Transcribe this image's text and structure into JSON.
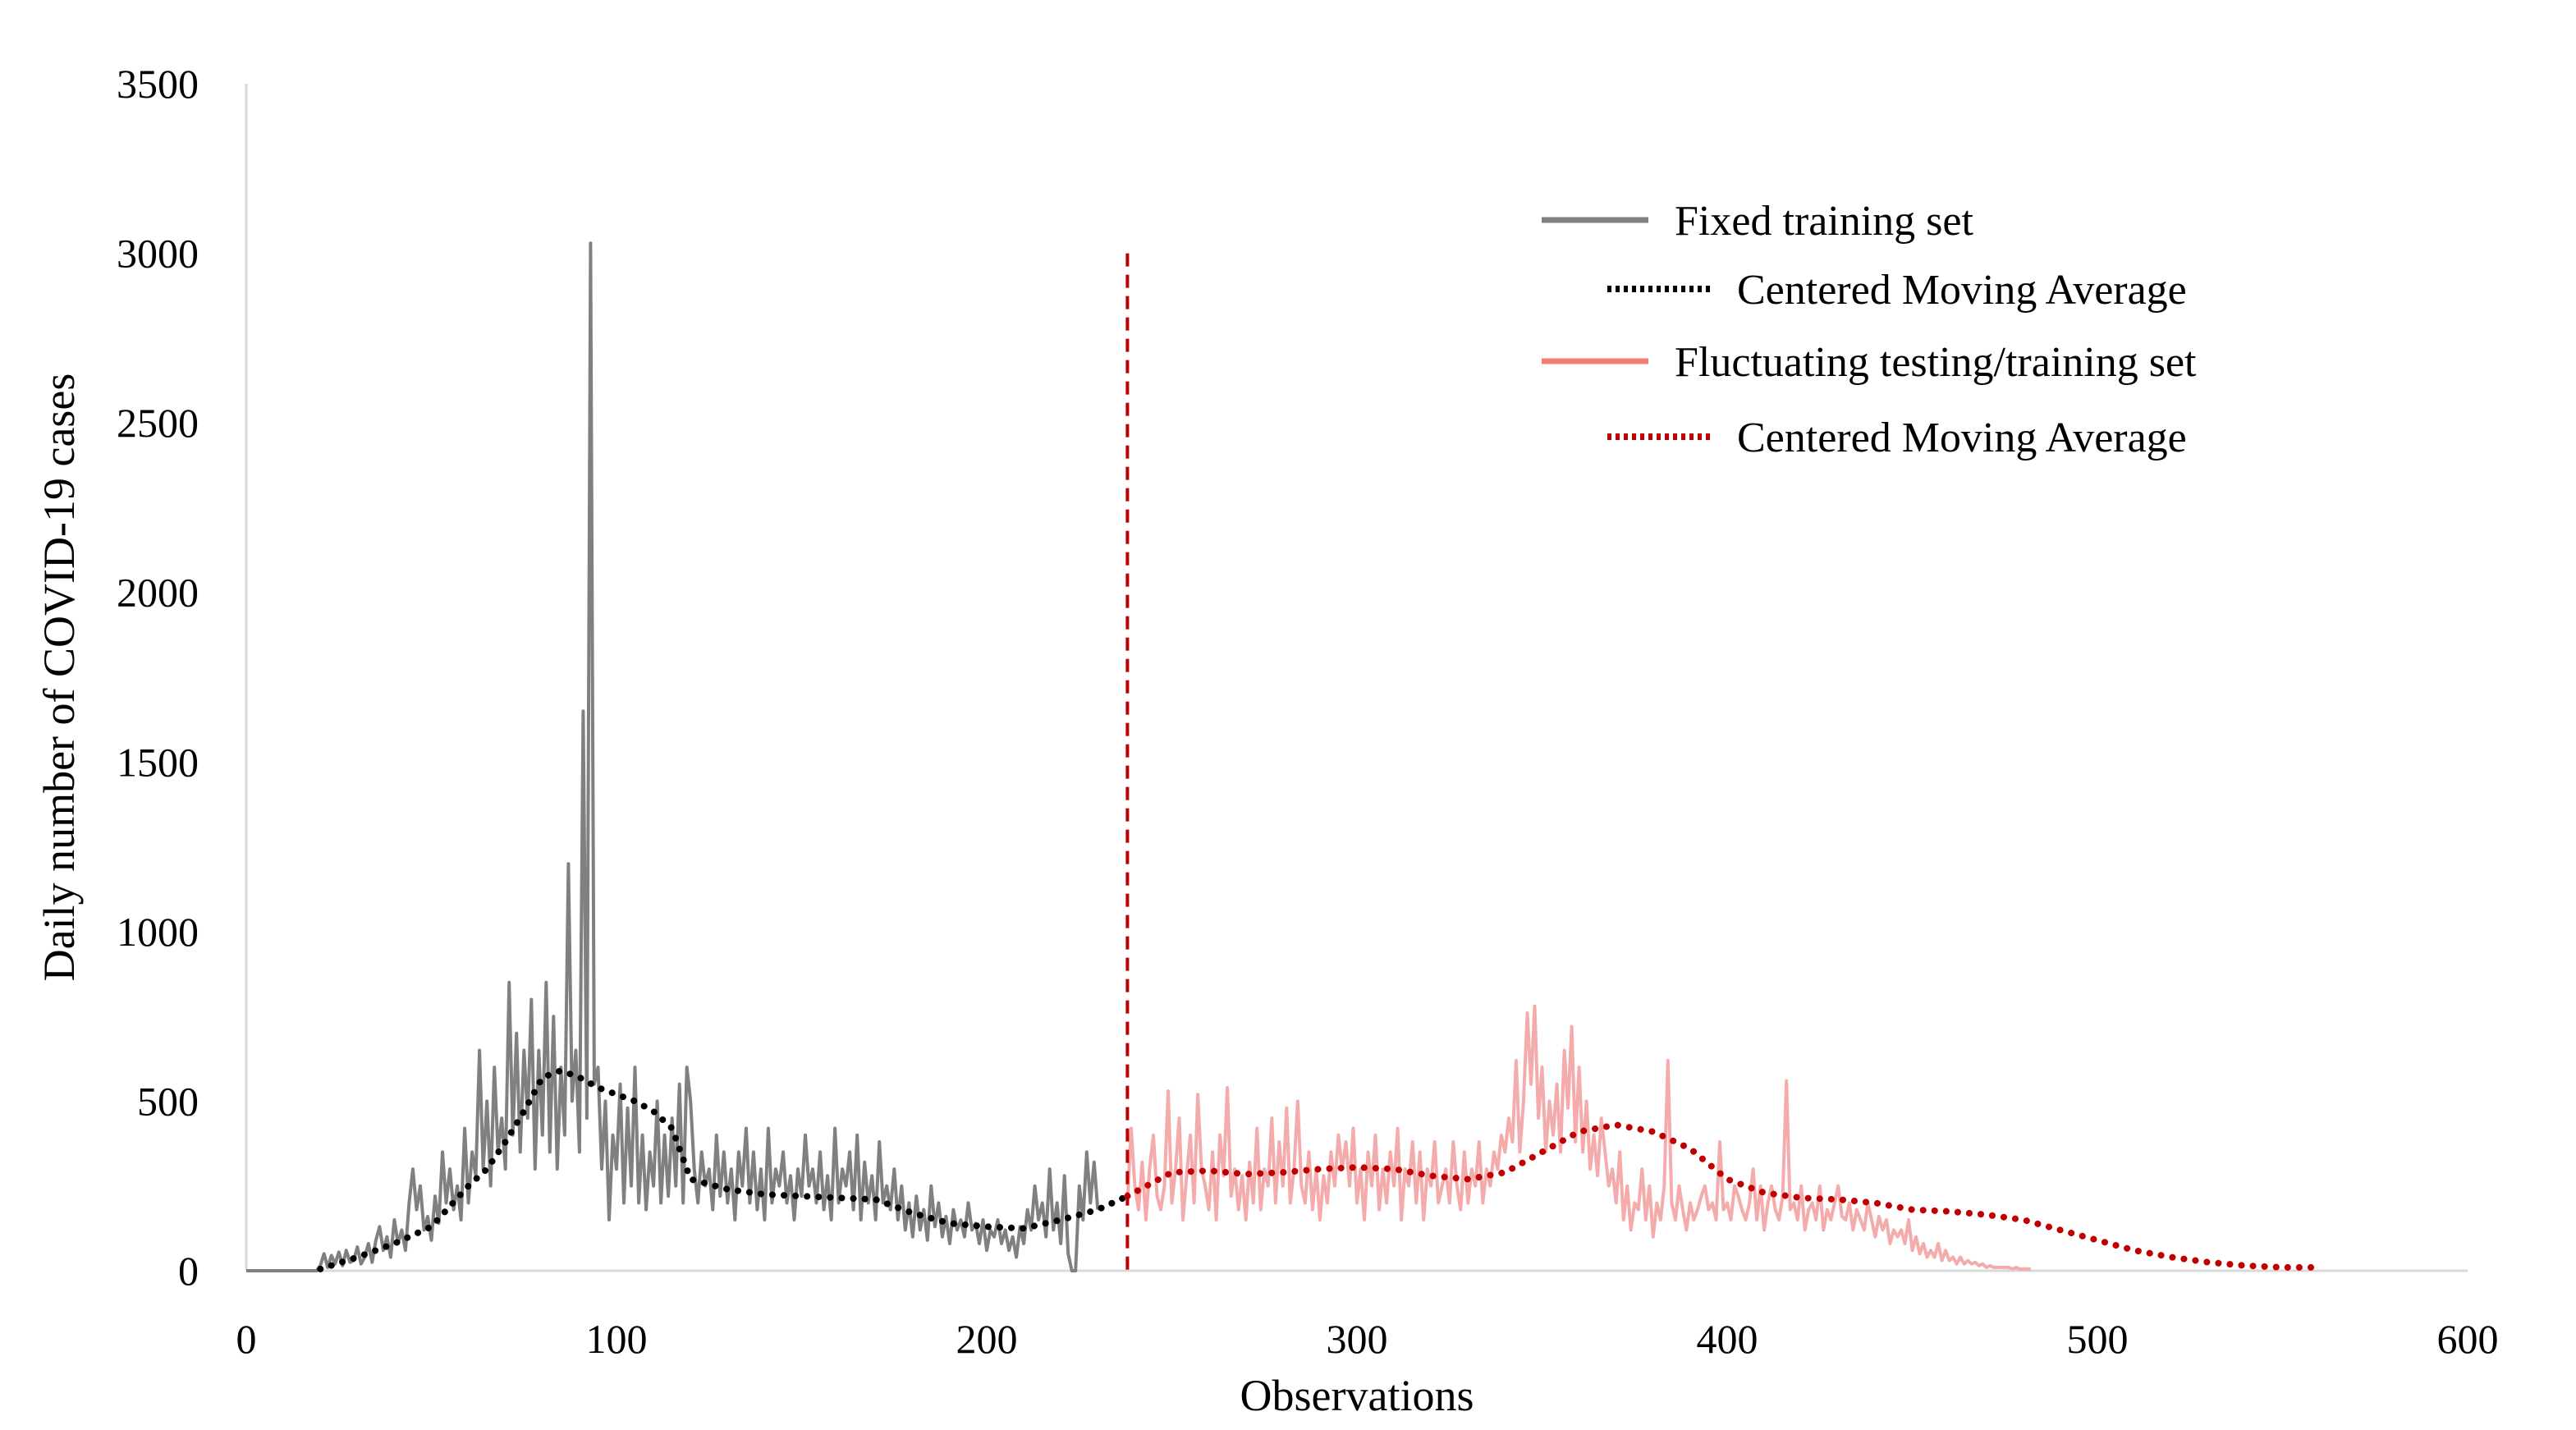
{
  "chart_data": {
    "type": "line",
    "title": "",
    "xlabel": "Observations",
    "ylabel": "Daily number of COVID-19 cases",
    "xlim": [
      0,
      600
    ],
    "ylim": [
      0,
      3500
    ],
    "xticks": [
      0,
      100,
      200,
      300,
      400,
      500,
      600
    ],
    "yticks": [
      0,
      500,
      1000,
      1500,
      2000,
      2500,
      3000,
      3500
    ],
    "grid": false,
    "legend_position": "top-right",
    "split": {
      "x": 238,
      "y_top": 3000,
      "color": "#C00000"
    },
    "series": [
      {
        "name": "Fixed training set",
        "color": "#808080",
        "style": "solid",
        "x_start": 0,
        "values": [
          0,
          0,
          0,
          0,
          0,
          0,
          0,
          0,
          0,
          0,
          0,
          0,
          0,
          0,
          0,
          0,
          0,
          0,
          0,
          0,
          15,
          50,
          10,
          45,
          20,
          55,
          15,
          60,
          25,
          30,
          70,
          20,
          40,
          80,
          25,
          90,
          130,
          60,
          100,
          40,
          150,
          80,
          120,
          60,
          200,
          300,
          180,
          250,
          120,
          160,
          90,
          220,
          140,
          350,
          200,
          300,
          180,
          250,
          150,
          420,
          200,
          350,
          280,
          650,
          300,
          500,
          250,
          600,
          350,
          450,
          300,
          850,
          400,
          700,
          350,
          650,
          450,
          800,
          300,
          650,
          400,
          850,
          350,
          750,
          300,
          600,
          400,
          1200,
          500,
          650,
          350,
          1650,
          450,
          3030,
          550,
          600,
          300,
          500,
          150,
          400,
          300,
          550,
          200,
          480,
          250,
          600,
          200,
          400,
          180,
          350,
          250,
          500,
          200,
          400,
          220,
          450,
          250,
          550,
          200,
          600,
          500,
          300,
          200,
          350,
          250,
          300,
          180,
          400,
          220,
          350,
          200,
          300,
          150,
          350,
          250,
          420,
          200,
          350,
          180,
          300,
          150,
          420,
          200,
          300,
          250,
          350,
          200,
          280,
          150,
          300,
          220,
          400,
          250,
          300,
          200,
          350,
          180,
          280,
          150,
          420,
          200,
          300,
          250,
          350,
          180,
          400,
          150,
          320,
          200,
          280,
          150,
          380,
          200,
          250,
          180,
          300,
          150,
          250,
          120,
          200,
          100,
          220,
          120,
          180,
          90,
          250,
          130,
          200,
          100,
          160,
          80,
          180,
          120,
          150,
          100,
          200,
          120,
          140,
          80,
          150,
          60,
          120,
          100,
          150,
          80,
          120,
          60,
          100,
          40,
          130,
          80,
          180,
          120,
          250,
          150,
          200,
          100,
          300,
          120,
          200,
          80,
          280,
          50,
          0,
          0,
          250,
          150,
          350,
          200,
          320,
          180
        ]
      },
      {
        "name": "Centered Moving Average",
        "color": "#000000",
        "style": "dotted",
        "points": [
          [
            20,
            5
          ],
          [
            30,
            40
          ],
          [
            40,
            80
          ],
          [
            50,
            130
          ],
          [
            55,
            190
          ],
          [
            60,
            250
          ],
          [
            65,
            300
          ],
          [
            70,
            380
          ],
          [
            75,
            470
          ],
          [
            80,
            570
          ],
          [
            85,
            590
          ],
          [
            90,
            570
          ],
          [
            95,
            540
          ],
          [
            100,
            520
          ],
          [
            105,
            500
          ],
          [
            110,
            470
          ],
          [
            115,
            420
          ],
          [
            120,
            270
          ],
          [
            130,
            240
          ],
          [
            140,
            225
          ],
          [
            150,
            220
          ],
          [
            160,
            215
          ],
          [
            170,
            210
          ],
          [
            180,
            170
          ],
          [
            190,
            140
          ],
          [
            200,
            130
          ],
          [
            210,
            125
          ],
          [
            220,
            150
          ],
          [
            230,
            180
          ],
          [
            238,
            220
          ]
        ]
      },
      {
        "name": "Fluctuating testing/training set",
        "color": "#F4ABAB",
        "style": "solid",
        "x_start": 238,
        "values": [
          200,
          420,
          250,
          180,
          320,
          150,
          300,
          400,
          220,
          180,
          250,
          530,
          200,
          300,
          450,
          150,
          280,
          400,
          200,
          520,
          300,
          250,
          180,
          350,
          150,
          400,
          280,
          540,
          220,
          300,
          180,
          280,
          150,
          320,
          200,
          420,
          180,
          300,
          250,
          450,
          200,
          380,
          250,
          480,
          200,
          300,
          500,
          250,
          200,
          350,
          180,
          300,
          150,
          280,
          200,
          350,
          250,
          400,
          300,
          380,
          250,
          420,
          200,
          300,
          150,
          350,
          250,
          400,
          180,
          300,
          200,
          350,
          250,
          420,
          150,
          300,
          250,
          380,
          200,
          350,
          150,
          300,
          250,
          380,
          200,
          250,
          300,
          200,
          380,
          250,
          180,
          350,
          200,
          300,
          250,
          380,
          200,
          300,
          250,
          350,
          300,
          400,
          350,
          450,
          380,
          620,
          350,
          500,
          760,
          550,
          780,
          450,
          600,
          350,
          500,
          400,
          550,
          350,
          650,
          480,
          720,
          380,
          600,
          350,
          500,
          300,
          400,
          280,
          450,
          350,
          250,
          300,
          200,
          350,
          150,
          250,
          120,
          200,
          180,
          300,
          150,
          250,
          100,
          200,
          150,
          250,
          620,
          200,
          150,
          250,
          180,
          120,
          200,
          150,
          180,
          220,
          250,
          180,
          200,
          150,
          380,
          180,
          200,
          150,
          250,
          220,
          180,
          150,
          200,
          300,
          150,
          250,
          120,
          200,
          250,
          180,
          150,
          220,
          560,
          180,
          200,
          150,
          250,
          120,
          180,
          200,
          150,
          250,
          120,
          180,
          150,
          200,
          250,
          160,
          150,
          200,
          120,
          180,
          150,
          120,
          200,
          150,
          100,
          160,
          120,
          150,
          80,
          120,
          100,
          120,
          80,
          150,
          60,
          100,
          50,
          80,
          40,
          60,
          40,
          80,
          30,
          60,
          30,
          40,
          20,
          40,
          20,
          30,
          20,
          25,
          15,
          20,
          10,
          15,
          10,
          10,
          10,
          10,
          10,
          5,
          10,
          5,
          5,
          5,
          5
        ]
      },
      {
        "name": "Centered Moving Average",
        "color": "#C00000",
        "style": "dotted",
        "points": [
          [
            238,
            220
          ],
          [
            250,
            290
          ],
          [
            260,
            295
          ],
          [
            270,
            285
          ],
          [
            280,
            290
          ],
          [
            290,
            300
          ],
          [
            300,
            305
          ],
          [
            310,
            300
          ],
          [
            320,
            280
          ],
          [
            330,
            270
          ],
          [
            340,
            290
          ],
          [
            350,
            350
          ],
          [
            360,
            410
          ],
          [
            370,
            430
          ],
          [
            380,
            410
          ],
          [
            390,
            360
          ],
          [
            400,
            270
          ],
          [
            410,
            230
          ],
          [
            420,
            215
          ],
          [
            430,
            210
          ],
          [
            440,
            200
          ],
          [
            450,
            180
          ],
          [
            460,
            175
          ],
          [
            470,
            165
          ],
          [
            480,
            150
          ],
          [
            490,
            120
          ],
          [
            500,
            90
          ],
          [
            510,
            60
          ],
          [
            520,
            40
          ],
          [
            530,
            25
          ],
          [
            540,
            15
          ],
          [
            550,
            10
          ],
          [
            558,
            10
          ]
        ]
      }
    ]
  },
  "legend": {
    "items": [
      {
        "label": "Fixed training set",
        "color": "#808080",
        "style": "solid"
      },
      {
        "label": "Centered Moving Average",
        "color": "#000000",
        "style": "dotted"
      },
      {
        "label": "Fluctuating testing/training set",
        "color": "#F4ABAB",
        "style": "solid"
      },
      {
        "label": "Centered Moving Average",
        "color": "#C00000",
        "style": "dotted"
      }
    ]
  }
}
